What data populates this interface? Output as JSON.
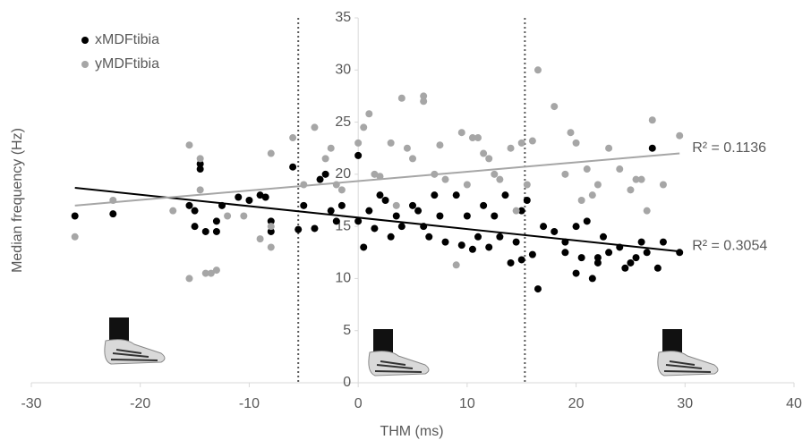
{
  "chart_data": {
    "type": "scatter",
    "x_label": "THM (ms)",
    "y_label": "Median frequency (Hz)",
    "xlim": [
      -30,
      40
    ],
    "xticks": [
      -30,
      -20,
      -10,
      0,
      10,
      20,
      30,
      40
    ],
    "ylim": [
      0,
      35
    ],
    "yticks": [
      0,
      5,
      10,
      15,
      20,
      25,
      30,
      35
    ],
    "legend": "top-left",
    "vlines": [
      -5.5,
      15.3
    ],
    "series": [
      {
        "name": "xMDFtibia",
        "color": "#000000",
        "x": [
          -26,
          -22.5,
          -15.5,
          -15,
          -14.5,
          -14.5,
          -15,
          -14,
          -13,
          -12.5,
          -13,
          -11,
          -10,
          -9,
          -8.5,
          -8,
          -8,
          -6,
          -5.5,
          -5,
          -4,
          -3.5,
          -3,
          -2.5,
          -2,
          -1.5,
          0,
          0,
          0.5,
          1,
          1.5,
          2,
          2.5,
          3,
          3.5,
          4,
          5,
          5.5,
          6,
          6.5,
          7,
          7.5,
          8,
          9,
          9.5,
          10,
          10.5,
          11,
          11.5,
          12,
          12.5,
          13,
          13.5,
          14,
          14.5,
          15,
          15,
          15.5,
          16,
          16.5,
          17,
          18,
          19,
          20,
          20.5,
          21,
          21.5,
          22,
          22.5,
          23,
          24,
          25,
          25.5,
          26,
          26.5,
          27,
          27.5,
          28,
          29.5,
          20,
          19,
          24.5,
          22
        ],
        "y": [
          16,
          16.2,
          17,
          15,
          21,
          20.5,
          16.5,
          14.5,
          14.5,
          17,
          15.5,
          17.8,
          17.5,
          18,
          17.8,
          14.5,
          15.5,
          20.7,
          14.7,
          17,
          14.8,
          19.5,
          20,
          16.5,
          15.5,
          17,
          21.8,
          15.5,
          13,
          16.5,
          14.8,
          18,
          17.5,
          14,
          16,
          15,
          17,
          16.5,
          15,
          14,
          18,
          16,
          13.5,
          18,
          13.2,
          16,
          12.8,
          14,
          17,
          13,
          16,
          14,
          18,
          11.5,
          13.5,
          11.8,
          16.5,
          17.5,
          12.3,
          9,
          15,
          14.5,
          13.5,
          15,
          12,
          15.5,
          10,
          11.5,
          14,
          12.5,
          13,
          11.5,
          12,
          13.5,
          12.5,
          22.5,
          11,
          13.5,
          12.5,
          10.5,
          12.5,
          11,
          12
        ],
        "trend": {
          "x": [
            -26,
            29.5
          ],
          "y": [
            18.7,
            12.6
          ],
          "label": "R² = 0.3054"
        }
      },
      {
        "name": "yMDFtibia",
        "color": "#a6a6a6",
        "x": [
          -26,
          -22.5,
          -17,
          -15.5,
          -15.5,
          -14.5,
          -14.5,
          -14,
          -13.5,
          -13,
          -12,
          -10.5,
          -9,
          -8,
          -8,
          -8,
          -6,
          -4,
          -2.5,
          -2,
          -1.5,
          0,
          0.5,
          1,
          1.5,
          2,
          3,
          3.5,
          4,
          4.5,
          5,
          6,
          6,
          7,
          7.5,
          8,
          9,
          9.5,
          10,
          10.5,
          11,
          11.5,
          12,
          12.5,
          13,
          14,
          14.5,
          15,
          15.5,
          16,
          16.5,
          18,
          19,
          19.5,
          20,
          20.5,
          21,
          21.5,
          22,
          23,
          24,
          25,
          25.5,
          26,
          26.5,
          27,
          28,
          29.5,
          -5,
          -3
        ],
        "y": [
          14,
          17.5,
          16.5,
          22.8,
          10,
          21.5,
          18.5,
          10.5,
          10.5,
          10.8,
          16,
          16,
          13.8,
          22,
          15,
          13,
          23.5,
          24.5,
          22.5,
          19,
          18.5,
          23,
          24.5,
          25.8,
          20,
          19.8,
          23,
          17,
          27.3,
          22.5,
          21.5,
          27.5,
          27,
          20,
          22.8,
          19.5,
          11.3,
          24,
          19,
          23.5,
          23.5,
          22,
          21.5,
          20,
          19.5,
          22.5,
          16.5,
          23,
          19,
          23.2,
          30,
          26.5,
          20,
          24,
          23,
          17.5,
          20.5,
          18,
          19,
          22.5,
          20.5,
          18.5,
          19.5,
          19.5,
          16.5,
          25.2,
          19,
          23.7,
          19,
          21.5
        ],
        "trend": {
          "x": [
            -26,
            29.5
          ],
          "y": [
            17,
            22
          ],
          "label": "R² = 0.1136"
        }
      }
    ]
  }
}
